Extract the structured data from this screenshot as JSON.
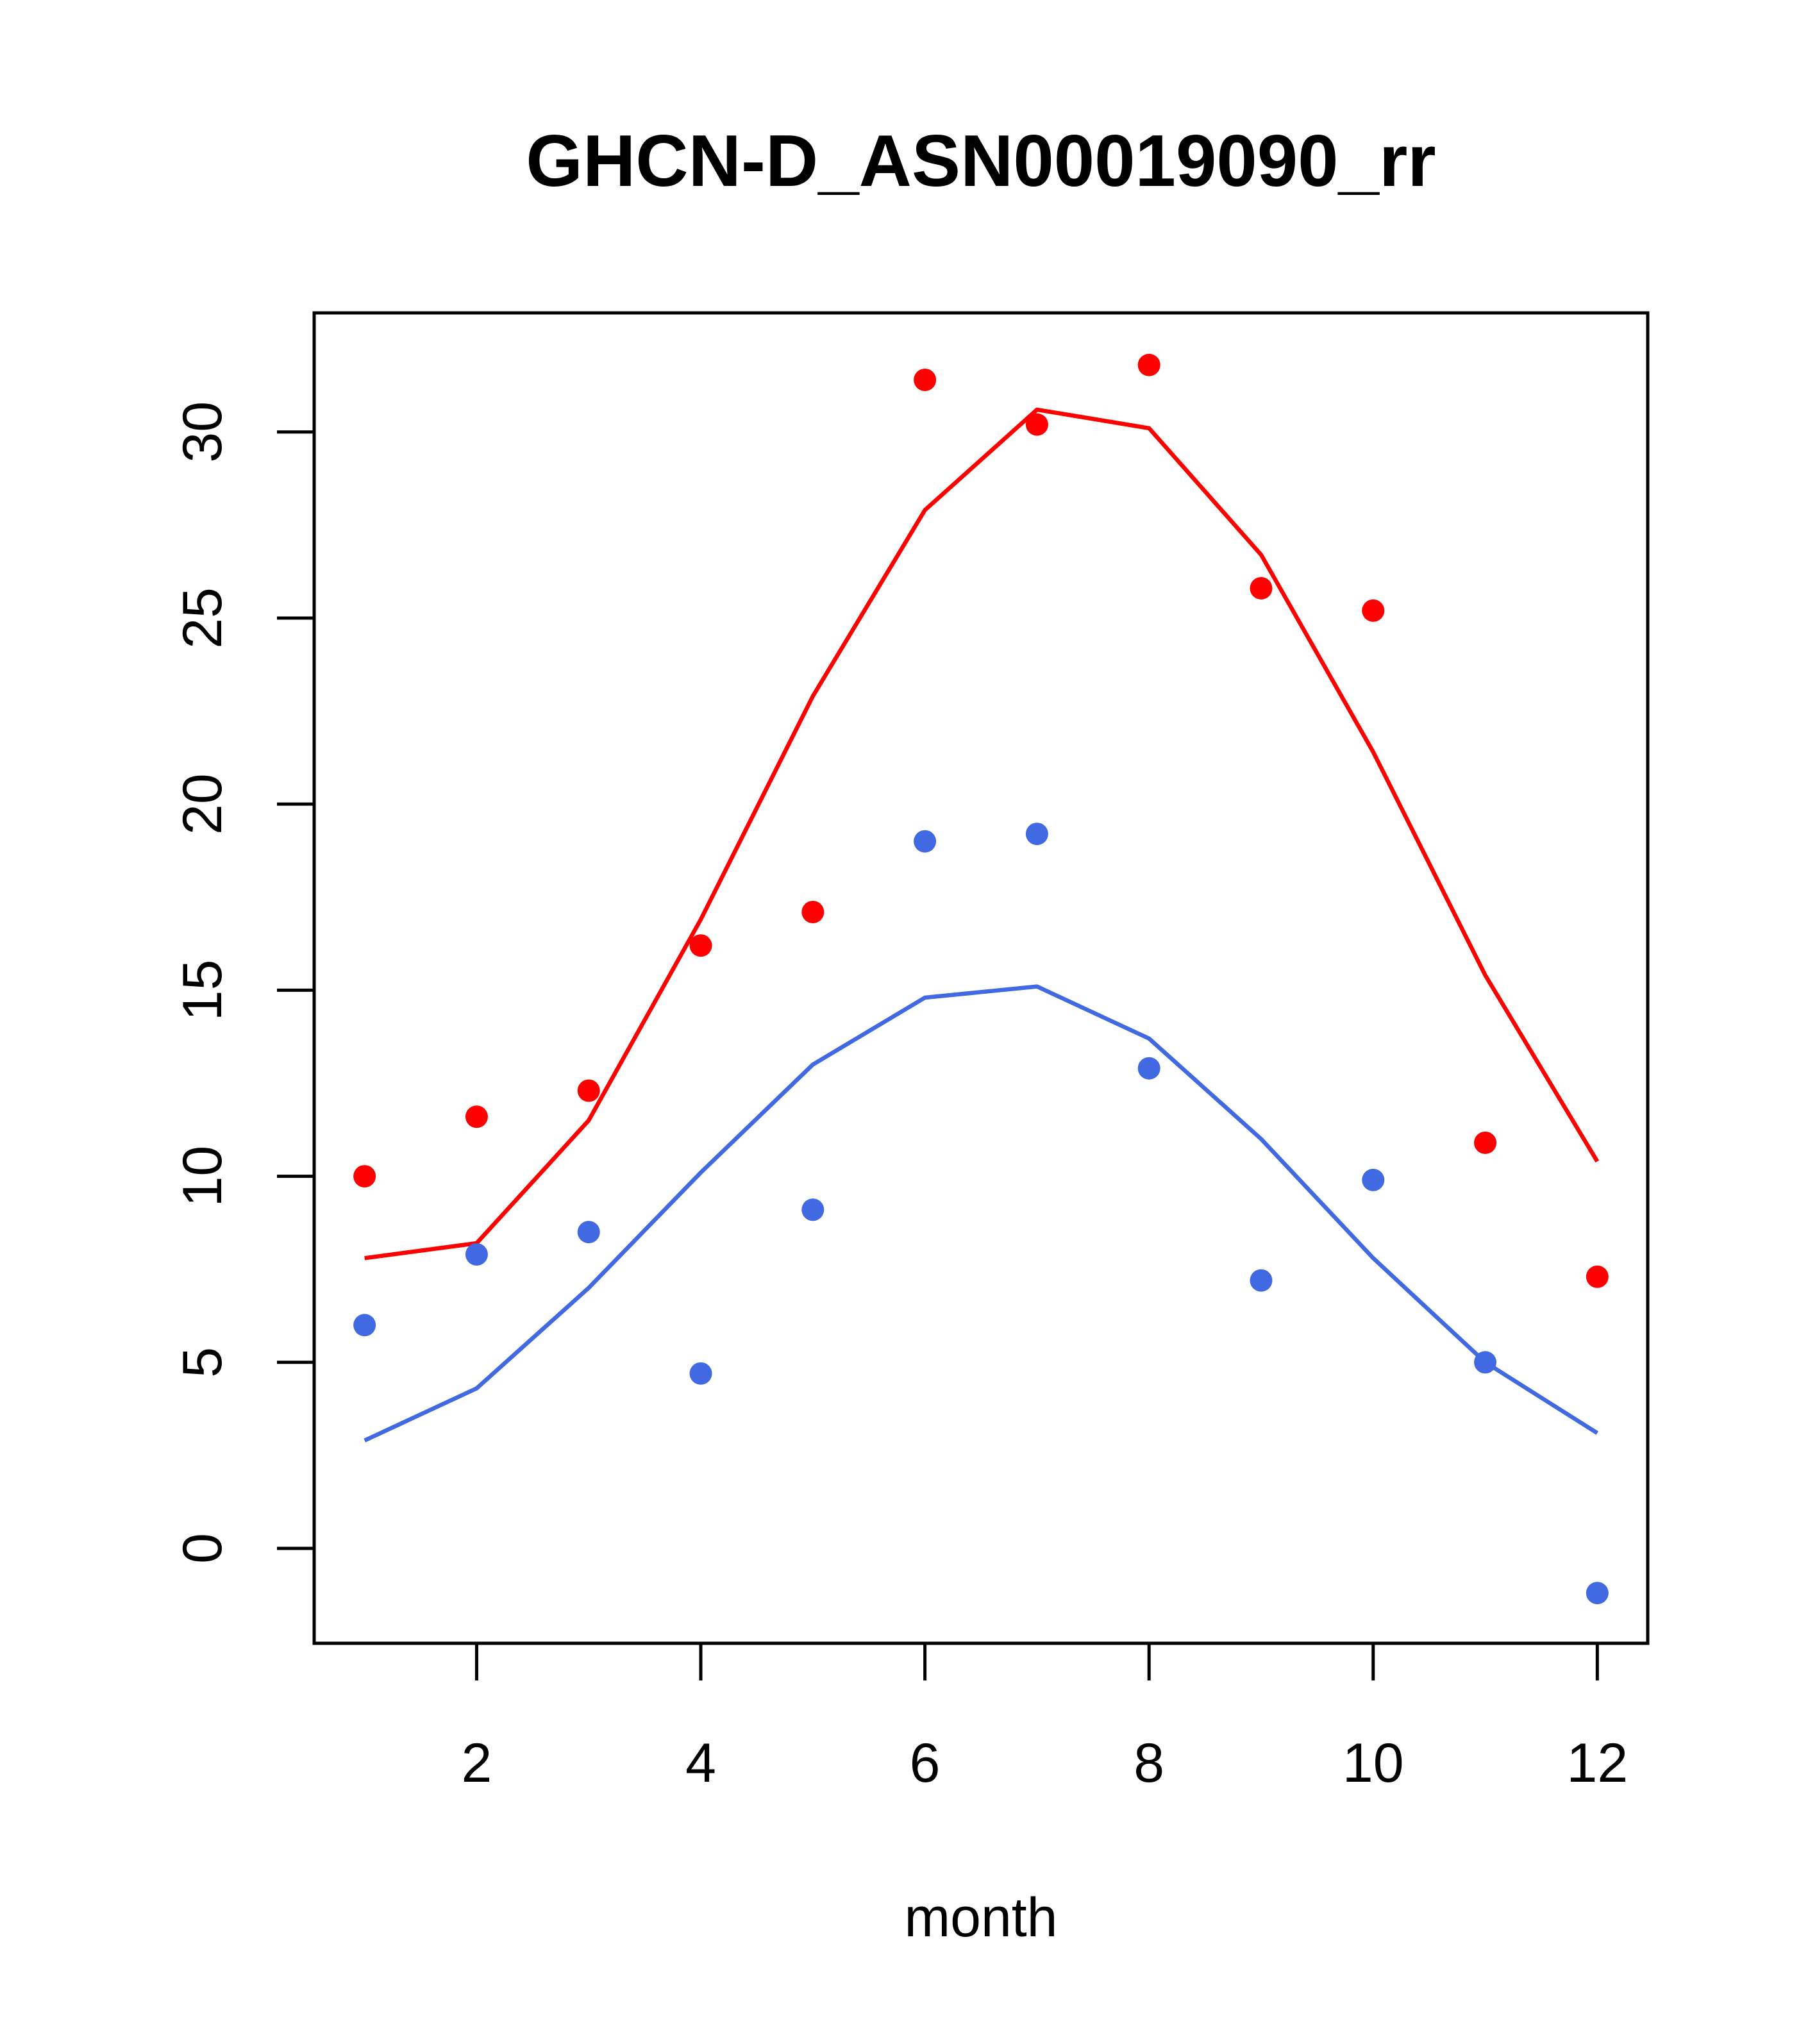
{
  "chart_data": {
    "type": "scatter",
    "title": "GHCN-D_ASN00019090_rr",
    "xlabel": "month",
    "ylabel": "",
    "xlim": [
      0.55,
      12.45
    ],
    "ylim": [
      -2.55,
      33.2
    ],
    "x_ticks": [
      2,
      4,
      6,
      8,
      10,
      12
    ],
    "y_ticks": [
      0,
      5,
      10,
      15,
      20,
      25,
      30
    ],
    "grid": false,
    "legend": "none",
    "x": [
      1,
      2,
      3,
      4,
      5,
      6,
      7,
      8,
      9,
      10,
      11,
      12
    ],
    "series": [
      {
        "kind": "points",
        "color": "#ff0000",
        "values": [
          10.0,
          11.6,
          12.3,
          16.2,
          17.1,
          31.4,
          30.2,
          31.8,
          25.8,
          25.2,
          10.9,
          7.3
        ]
      },
      {
        "kind": "line",
        "color": "#ff0000",
        "values": [
          7.8,
          8.2,
          11.5,
          16.9,
          22.9,
          27.9,
          30.6,
          30.1,
          26.7,
          21.4,
          15.4,
          10.4
        ]
      },
      {
        "kind": "points",
        "color": "#4169e1",
        "values": [
          6.0,
          7.9,
          8.5,
          4.7,
          9.1,
          19.0,
          19.2,
          12.9,
          7.2,
          9.9,
          5.0,
          -1.2
        ]
      },
      {
        "kind": "line",
        "color": "#4169e1",
        "values": [
          2.9,
          4.3,
          7.0,
          10.1,
          13.0,
          14.8,
          15.1,
          13.7,
          11.0,
          7.8,
          5.0,
          3.1
        ]
      }
    ]
  }
}
